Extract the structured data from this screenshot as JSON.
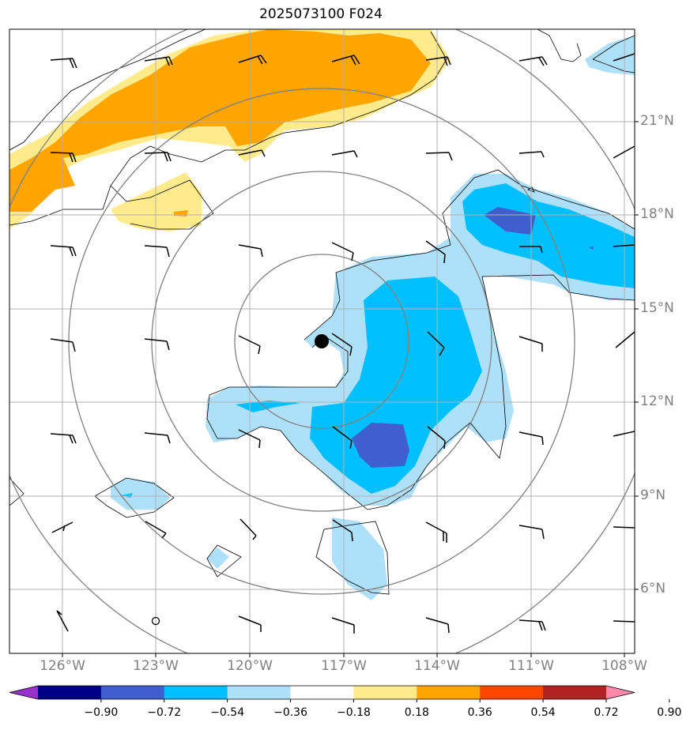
{
  "title": "2025073100 F024",
  "lat_labels": [
    "21°N",
    "18°N",
    "15°N",
    "12°N",
    "9°N",
    "6°N"
  ],
  "lon_labels": [
    "126°W",
    "123°W",
    "120°W",
    "117°W",
    "114°W",
    "111°W",
    "108°W"
  ],
  "colorbar": {
    "labels": [
      "−0.90",
      "−0.72",
      "−0.54",
      "−0.36",
      "−0.18",
      "0.18",
      "0.36",
      "0.54",
      "0.72",
      "0.90"
    ],
    "colors": [
      "#9932cc",
      "#00008b",
      "#3f5fcf",
      "#00bfff",
      "#aee0fa",
      "#ffffff",
      "#ffeb8c",
      "#ffa500",
      "#ff4500",
      "#b22222",
      "#ff88aa"
    ]
  },
  "colors": {
    "light_blue": "#aee0fa",
    "blue": "#00bfff",
    "dark_blue": "#3f5fcf",
    "yellow": "#ffeb8c",
    "orange": "#ffa500",
    "gridline": "#b0b0b0",
    "range_ring": "#808080"
  },
  "storm_center_marker": "filled-circle"
}
